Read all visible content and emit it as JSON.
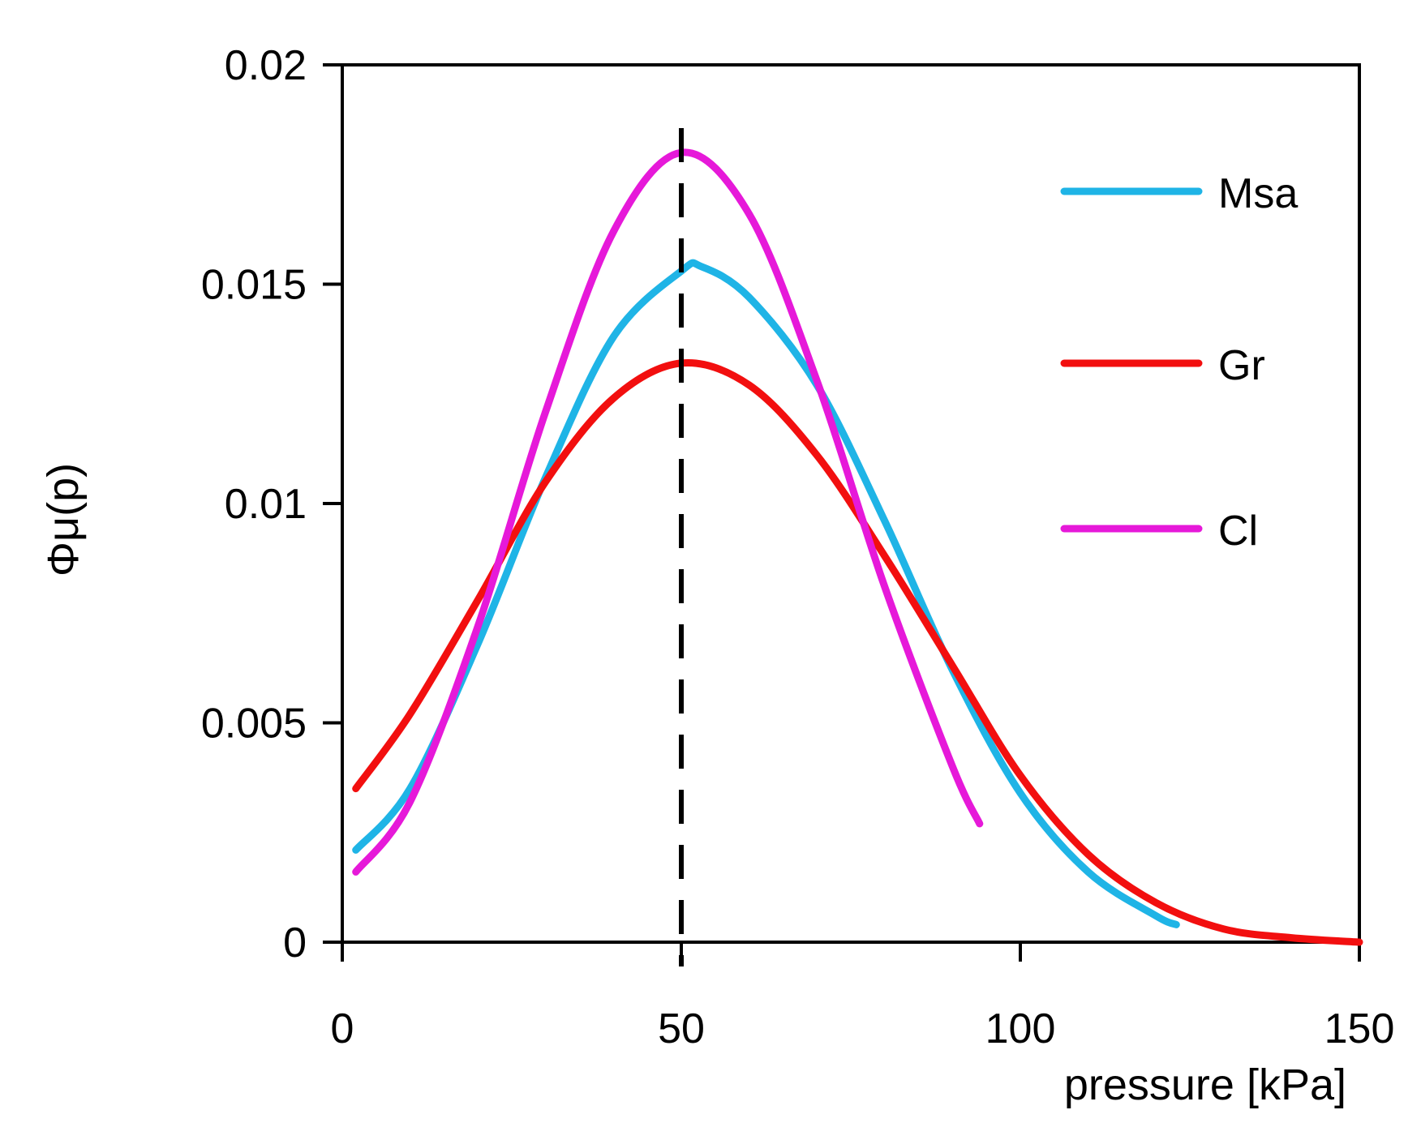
{
  "chart_data": {
    "type": "line",
    "title": "",
    "xlabel": "pressure [kPa]",
    "ylabel": "Φμ(p)",
    "xlim": [
      0,
      150
    ],
    "ylim": [
      0,
      0.02
    ],
    "x_ticks": [
      0,
      50,
      100,
      150
    ],
    "x_tick_labels": [
      "0",
      "50",
      "100",
      "150"
    ],
    "y_ticks": [
      0,
      0.005,
      0.01,
      0.015,
      0.02
    ],
    "y_tick_labels": [
      "0",
      "0.005",
      "0.01",
      "0.015",
      "0.02"
    ],
    "grid": false,
    "legend_position": "top-right",
    "reference_line": {
      "x": 50,
      "style": "dashed",
      "color": "#000000"
    },
    "series": [
      {
        "name": "Msa",
        "color": "#1FB4E6",
        "x": [
          2,
          10,
          20,
          30,
          40,
          50,
          53,
          60,
          70,
          80,
          90,
          100,
          110,
          120,
          123
        ],
        "y": [
          0.0021,
          0.0035,
          0.0068,
          0.0106,
          0.0138,
          0.0153,
          0.0154,
          0.0147,
          0.0127,
          0.0096,
          0.0062,
          0.0034,
          0.0016,
          0.0006,
          0.0004
        ]
      },
      {
        "name": "Gr",
        "color": "#F20F0F",
        "x": [
          2,
          10,
          20,
          30,
          40,
          50,
          60,
          70,
          80,
          90,
          100,
          110,
          120,
          130,
          140,
          150
        ],
        "y": [
          0.0035,
          0.0052,
          0.0078,
          0.0105,
          0.0124,
          0.0132,
          0.0127,
          0.0111,
          0.0088,
          0.0063,
          0.0038,
          0.002,
          0.0009,
          0.0003,
          0.0001,
          0.0
        ]
      },
      {
        "name": "Cl",
        "color": "#E619D9",
        "x": [
          2,
          10,
          20,
          30,
          40,
          50,
          60,
          70,
          80,
          90,
          94
        ],
        "y": [
          0.0016,
          0.0032,
          0.0072,
          0.0121,
          0.0162,
          0.018,
          0.0166,
          0.0128,
          0.0081,
          0.004,
          0.0027
        ]
      }
    ]
  }
}
